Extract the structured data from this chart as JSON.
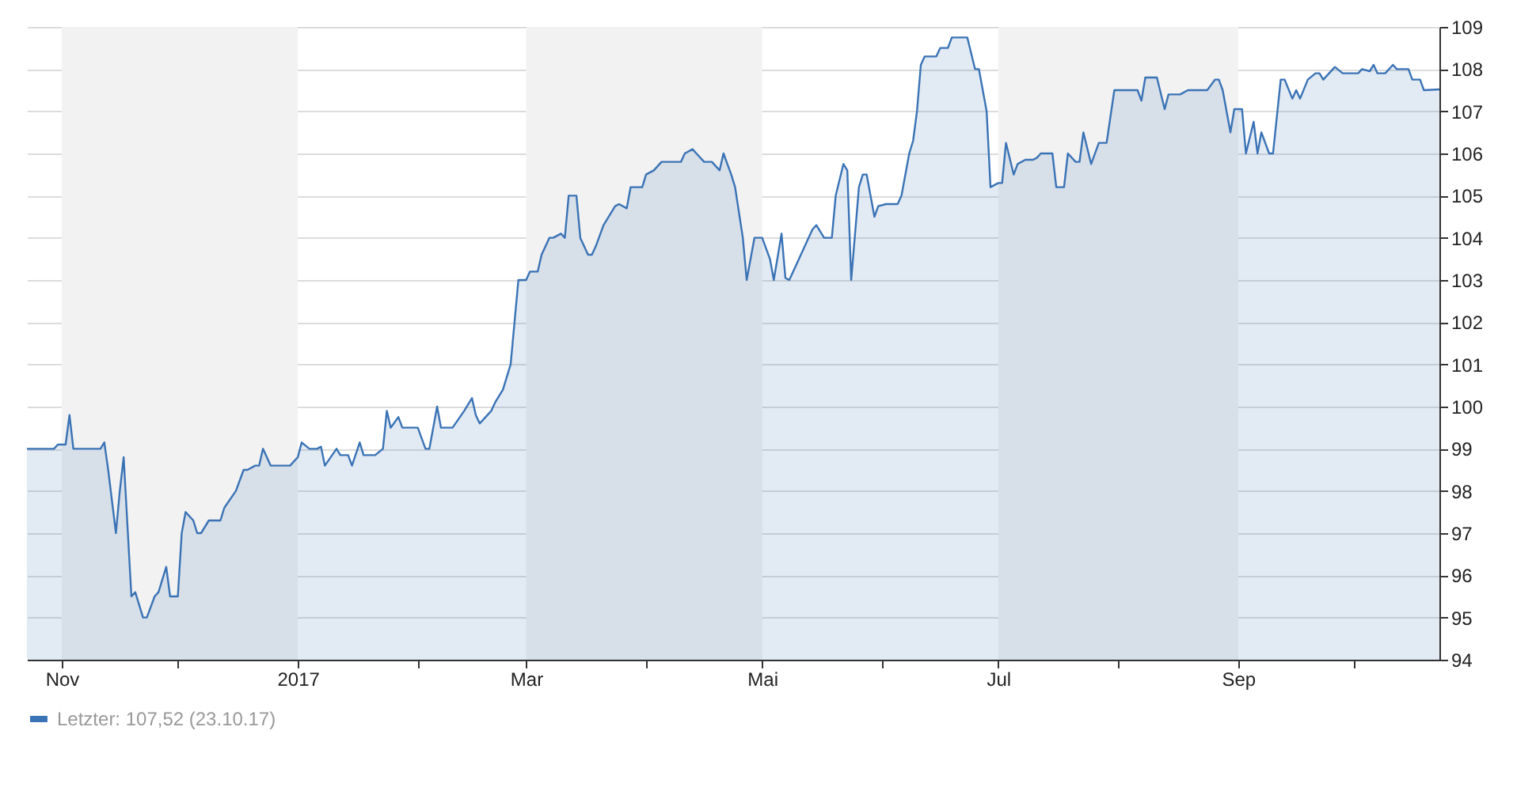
{
  "chart_data": {
    "type": "area",
    "xlim": [
      "2016-10-23",
      "2017-10-23"
    ],
    "xticks": [
      {
        "value": "2016-11-01",
        "label": "Nov"
      },
      {
        "value": "2016-12-01",
        "label": null
      },
      {
        "value": "2017-01-01",
        "label": "2017"
      },
      {
        "value": "2017-02-01",
        "label": null
      },
      {
        "value": "2017-03-01",
        "label": "Mar"
      },
      {
        "value": "2017-04-01",
        "label": null
      },
      {
        "value": "2017-05-01",
        "label": "Mai"
      },
      {
        "value": "2017-06-01",
        "label": null
      },
      {
        "value": "2017-07-01",
        "label": "Jul"
      },
      {
        "value": "2017-08-01",
        "label": null
      },
      {
        "value": "2017-09-01",
        "label": "Sep"
      },
      {
        "value": "2017-10-01",
        "label": null
      }
    ],
    "ylim": [
      94,
      109
    ],
    "yticks": [
      94,
      95,
      96,
      97,
      98,
      99,
      100,
      101,
      102,
      103,
      104,
      105,
      106,
      107,
      108,
      109
    ],
    "grid": "y",
    "legend": "bottom left",
    "bands": [
      {
        "axis": "x",
        "from": "2016-11-01",
        "to": "2017-01-01",
        "color": "#f2f2f2"
      },
      {
        "axis": "x",
        "from": "2017-03-01",
        "to": "2017-05-01",
        "color": "#f2f2f2"
      },
      {
        "axis": "x",
        "from": "2017-07-01",
        "to": "2017-09-01",
        "color": "#f2f2f2"
      }
    ],
    "series": [
      {
        "name": "Letzter: 107,52 (23.10.17)",
        "color": "#3a73b5",
        "x": [
          "2016-10-23",
          "2016-10-30",
          "2016-10-31",
          "2016-11-02",
          "2016-11-03",
          "2016-11-04",
          "2016-11-11",
          "2016-11-12",
          "2016-11-13",
          "2016-11-15",
          "2016-11-16",
          "2016-11-17",
          "2016-11-19",
          "2016-11-20",
          "2016-11-22",
          "2016-11-23",
          "2016-11-25",
          "2016-11-26",
          "2016-11-28",
          "2016-11-29",
          "2016-12-01",
          "2016-12-02",
          "2016-12-03",
          "2016-12-05",
          "2016-12-06",
          "2016-12-07",
          "2016-12-09",
          "2016-12-12",
          "2016-12-13",
          "2016-12-16",
          "2016-12-18",
          "2016-12-19",
          "2016-12-21",
          "2016-12-22",
          "2016-12-23",
          "2016-12-25",
          "2016-12-30",
          "2017-01-01",
          "2017-01-02",
          "2017-01-04",
          "2017-01-06",
          "2017-01-07",
          "2017-01-08",
          "2017-01-11",
          "2017-01-12",
          "2017-01-14",
          "2017-01-15",
          "2017-01-17",
          "2017-01-18",
          "2017-01-21",
          "2017-01-23",
          "2017-01-24",
          "2017-01-25",
          "2017-01-27",
          "2017-01-28",
          "2017-02-01",
          "2017-02-03",
          "2017-02-04",
          "2017-02-06",
          "2017-02-07",
          "2017-02-10",
          "2017-02-13",
          "2017-02-15",
          "2017-02-16",
          "2017-02-17",
          "2017-02-20",
          "2017-02-21",
          "2017-02-23",
          "2017-02-25",
          "2017-02-26",
          "2017-02-27",
          "2017-03-01",
          "2017-03-02",
          "2017-03-04",
          "2017-03-05",
          "2017-03-07",
          "2017-03-08",
          "2017-03-10",
          "2017-03-11",
          "2017-03-12",
          "2017-03-14",
          "2017-03-15",
          "2017-03-17",
          "2017-03-18",
          "2017-03-19",
          "2017-03-21",
          "2017-03-23",
          "2017-03-24",
          "2017-03-25",
          "2017-03-27",
          "2017-03-28",
          "2017-03-31",
          "2017-04-01",
          "2017-04-03",
          "2017-04-05",
          "2017-04-10",
          "2017-04-11",
          "2017-04-13",
          "2017-04-14",
          "2017-04-16",
          "2017-04-18",
          "2017-04-20",
          "2017-04-21",
          "2017-04-23",
          "2017-04-24",
          "2017-04-26",
          "2017-04-27",
          "2017-04-29",
          "2017-05-01",
          "2017-05-03",
          "2017-05-04",
          "2017-05-06",
          "2017-05-07",
          "2017-05-08",
          "2017-05-10",
          "2017-05-12",
          "2017-05-14",
          "2017-05-15",
          "2017-05-17",
          "2017-05-19",
          "2017-05-20",
          "2017-05-22",
          "2017-05-23",
          "2017-05-24",
          "2017-05-26",
          "2017-05-27",
          "2017-05-28",
          "2017-05-30",
          "2017-05-31",
          "2017-06-02",
          "2017-06-05",
          "2017-06-06",
          "2017-06-08",
          "2017-06-09",
          "2017-06-10",
          "2017-06-11",
          "2017-06-12",
          "2017-06-15",
          "2017-06-16",
          "2017-06-18",
          "2017-06-19",
          "2017-06-23",
          "2017-06-25",
          "2017-06-26",
          "2017-06-28",
          "2017-06-29",
          "2017-07-01",
          "2017-07-02",
          "2017-07-03",
          "2017-07-05",
          "2017-07-06",
          "2017-07-08",
          "2017-07-10",
          "2017-07-11",
          "2017-07-12",
          "2017-07-15",
          "2017-07-16",
          "2017-07-18",
          "2017-07-19",
          "2017-07-21",
          "2017-07-22",
          "2017-07-23",
          "2017-07-25",
          "2017-07-27",
          "2017-07-29",
          "2017-07-31",
          "2017-08-06",
          "2017-08-07",
          "2017-08-08",
          "2017-08-11",
          "2017-08-13",
          "2017-08-14",
          "2017-08-17",
          "2017-08-19",
          "2017-08-24",
          "2017-08-26",
          "2017-08-27",
          "2017-08-28",
          "2017-08-30",
          "2017-08-31",
          "2017-09-02",
          "2017-09-03",
          "2017-09-05",
          "2017-09-06",
          "2017-09-07",
          "2017-09-09",
          "2017-09-10",
          "2017-09-12",
          "2017-09-13",
          "2017-09-15",
          "2017-09-16",
          "2017-09-17",
          "2017-09-19",
          "2017-09-21",
          "2017-09-22",
          "2017-09-23",
          "2017-09-26",
          "2017-09-28",
          "2017-10-02",
          "2017-10-03",
          "2017-10-05",
          "2017-10-06",
          "2017-10-07",
          "2017-10-09",
          "2017-10-11",
          "2017-10-12",
          "2017-10-15",
          "2017-10-16",
          "2017-10-18",
          "2017-10-19",
          "2017-10-23"
        ],
        "values": [
          99,
          99,
          99.1,
          99.1,
          99.8,
          99,
          99,
          99.15,
          98.5,
          97,
          98,
          98.8,
          95.5,
          95.6,
          95,
          95,
          95.5,
          95.6,
          96.2,
          95.5,
          95.5,
          97,
          97.5,
          97.3,
          97,
          97,
          97.3,
          97.3,
          97.6,
          98,
          98.5,
          98.5,
          98.6,
          98.6,
          99,
          98.6,
          98.6,
          98.8,
          99.15,
          99,
          99,
          99.05,
          98.6,
          99,
          98.85,
          98.85,
          98.6,
          99.15,
          98.85,
          98.85,
          99,
          99.9,
          99.5,
          99.75,
          99.5,
          99.5,
          99,
          99,
          100,
          99.5,
          99.5,
          99.9,
          100.2,
          99.8,
          99.6,
          99.9,
          100.1,
          100.4,
          101,
          102,
          103,
          103,
          103.2,
          103.2,
          103.6,
          104,
          104,
          104.1,
          104,
          105,
          105,
          104,
          103.6,
          103.6,
          103.8,
          104.3,
          104.6,
          104.75,
          104.8,
          104.7,
          105.2,
          105.2,
          105.5,
          105.6,
          105.8,
          105.8,
          106,
          106.1,
          106,
          105.8,
          105.8,
          105.6,
          106,
          105.5,
          105.2,
          104,
          103,
          104,
          104,
          103.5,
          103,
          104.1,
          103.05,
          103,
          103.4,
          103.8,
          104.2,
          104.3,
          104,
          104,
          105,
          105.75,
          105.6,
          103,
          105.2,
          105.5,
          105.5,
          104.5,
          104.75,
          104.8,
          104.8,
          105,
          106,
          106.3,
          107,
          108.1,
          108.3,
          108.3,
          108.5,
          108.5,
          108.75,
          108.75,
          108,
          108,
          107,
          105.2,
          105.3,
          105.3,
          106.25,
          105.5,
          105.75,
          105.85,
          105.85,
          105.9,
          106,
          106,
          105.2,
          105.2,
          106,
          105.8,
          105.8,
          106.5,
          105.75,
          106.25,
          106.25,
          107.5,
          107.5,
          107.25,
          107.8,
          107.8,
          107.05,
          107.4,
          107.4,
          107.5,
          107.5,
          107.75,
          107.75,
          107.5,
          106.5,
          107.05,
          107.05,
          106,
          106.75,
          106,
          106.5,
          106,
          106,
          107.75,
          107.75,
          107.3,
          107.5,
          107.3,
          107.75,
          107.9,
          107.9,
          107.75,
          108.05,
          107.9,
          107.9,
          108,
          107.95,
          108.1,
          107.9,
          107.9,
          108.1,
          108,
          108,
          107.75,
          107.75,
          107.5,
          107.52
        ]
      }
    ]
  }
}
